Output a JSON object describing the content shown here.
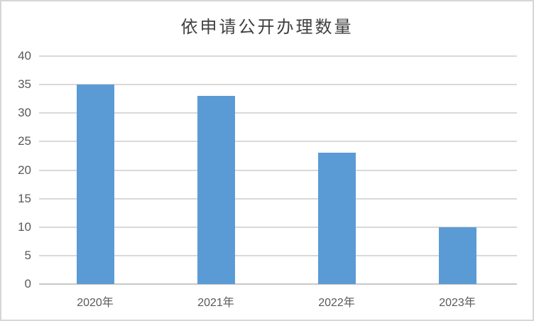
{
  "chart_data": {
    "type": "bar",
    "title": "依申请公开办理数量",
    "categories": [
      "2020年",
      "2021年",
      "2022年",
      "2023年"
    ],
    "values": [
      35,
      33,
      23,
      10
    ],
    "xlabel": "",
    "ylabel": "",
    "ylim": [
      0,
      40
    ],
    "ytick_step": 5,
    "ytick_labels": [
      "0",
      "5",
      "10",
      "15",
      "20",
      "25",
      "30",
      "35",
      "40"
    ],
    "grid": true,
    "legend_position": "none",
    "colors": {
      "bar": "#5B9BD5",
      "gridline": "#D9D9D9",
      "axis_line": "#C8C8C8",
      "tick_text": "#595959",
      "title_text": "#404040",
      "frame_border": "#D6D6D6",
      "background": "#FFFFFF"
    }
  }
}
